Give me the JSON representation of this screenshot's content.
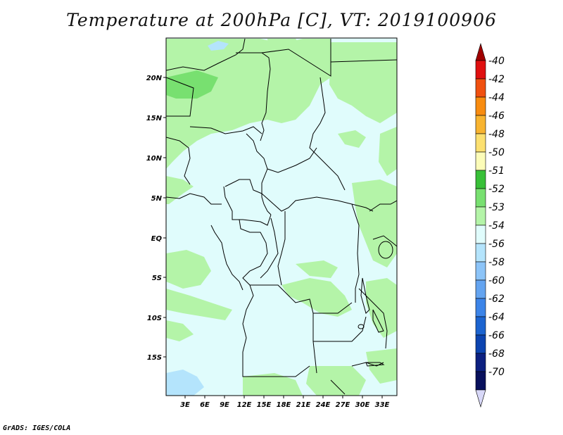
{
  "title": "Temperature at 200hPa [C], VT: 2019100906",
  "footer": "GrADS: IGES/COLA",
  "lat_labels": [
    "20N",
    "15N",
    "10N",
    "5N",
    "EQ",
    "5S",
    "10S",
    "15S"
  ],
  "lon_labels": [
    "3E",
    "6E",
    "9E",
    "12E",
    "15E",
    "18E",
    "21E",
    "24E",
    "27E",
    "30E",
    "33E"
  ],
  "colorbar": {
    "labels": [
      "-40",
      "-42",
      "-44",
      "-46",
      "-48",
      "-50",
      "-51",
      "-52",
      "-53",
      "-54",
      "-56",
      "-58",
      "-60",
      "-62",
      "-64",
      "-66",
      "-68",
      "-70"
    ],
    "colors": [
      "#a00000",
      "#e01010",
      "#f05010",
      "#f88c10",
      "#f8b430",
      "#fce070",
      "#fcfcb8",
      "#38c038",
      "#78e070",
      "#b4f4a8",
      "#e0fcfc",
      "#b4e4fc",
      "#8cc4f8",
      "#64a4f0",
      "#3c84e8",
      "#1c64d0",
      "#0c44b0",
      "#0c2080",
      "#08105c",
      "#d8d8f8"
    ]
  },
  "colors": {
    "ocean": "#e0fcfc",
    "land_warm": "#b4f4a8",
    "land_warmer": "#78e070",
    "cold": "#b4e4fc",
    "water": "#8cc4f8"
  }
}
